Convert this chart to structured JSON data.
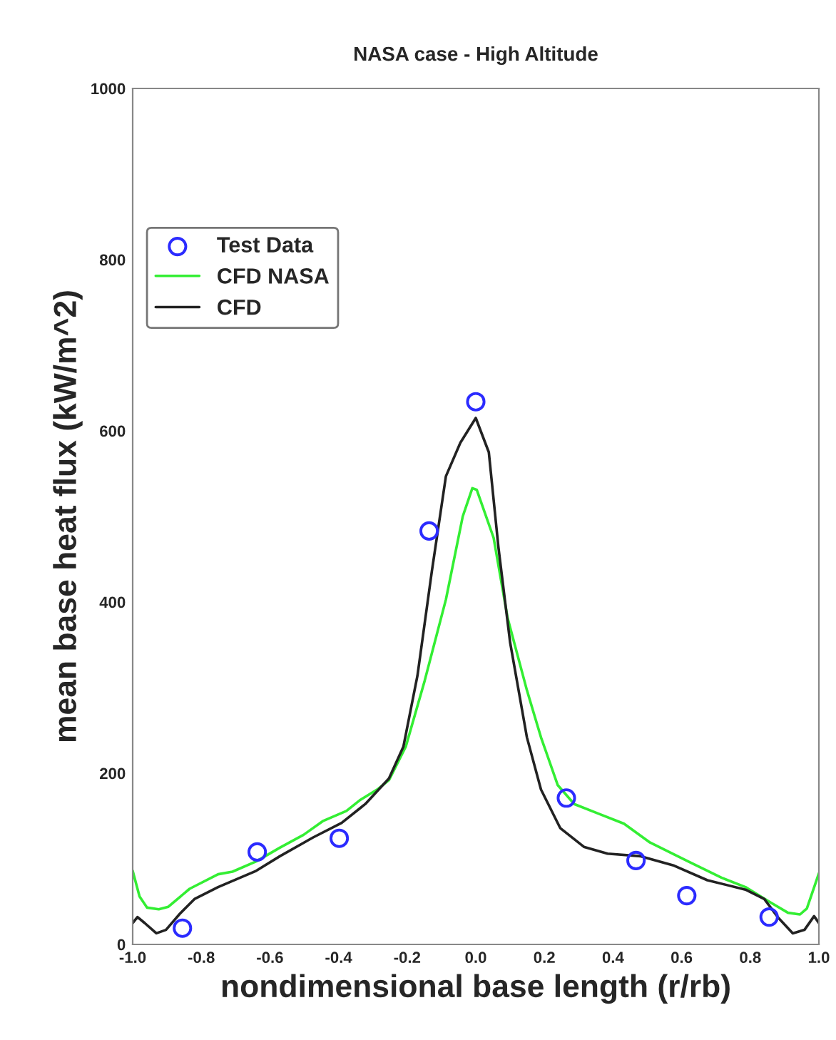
{
  "chart_data": {
    "type": "line",
    "title": "NASA case - High Altitude",
    "xlabel": "nondimensional base length (r/rb)",
    "ylabel": "mean base heat flux (kW/m^2)",
    "xlim": [
      -1.0,
      1.0
    ],
    "ylim": [
      0,
      1000
    ],
    "xticks": [
      {
        "value": -1.0,
        "label": "-1.0"
      },
      {
        "value": -0.8,
        "label": "-0.8"
      },
      {
        "value": -0.6,
        "label": "-0.6"
      },
      {
        "value": -0.4,
        "label": "-0.4"
      },
      {
        "value": -0.2,
        "label": "-0.2"
      },
      {
        "value": 0.0,
        "label": "0.0"
      },
      {
        "value": 0.2,
        "label": "0.2"
      },
      {
        "value": 0.4,
        "label": "0.4"
      },
      {
        "value": 0.6,
        "label": "0.6"
      },
      {
        "value": 0.8,
        "label": "0.8"
      },
      {
        "value": 1.0,
        "label": "1.0"
      }
    ],
    "yticks": [
      0,
      200,
      400,
      600,
      800,
      1000
    ],
    "grid": false,
    "legend": "top left",
    "series": [
      {
        "name": "Test Data",
        "type": "scatter",
        "marker": "circle",
        "color": "#2b2bff",
        "x": [
          -0.855,
          -0.637,
          -0.398,
          -0.136,
          0.0,
          0.264,
          0.467,
          0.615,
          0.855
        ],
        "values": [
          19,
          108,
          124,
          483,
          634,
          171,
          98,
          57,
          32
        ]
      },
      {
        "name": "CFD NASA",
        "marker": "none",
        "color": "#33ee33",
        "x": [
          -1.0,
          -0.98,
          -0.958,
          -0.924,
          -0.896,
          -0.834,
          -0.751,
          -0.709,
          -0.64,
          -0.571,
          -0.502,
          -0.446,
          -0.377,
          -0.336,
          -0.287,
          -0.253,
          -0.204,
          -0.149,
          -0.087,
          -0.038,
          -0.01,
          0.003,
          0.052,
          0.093,
          0.149,
          0.19,
          0.239,
          0.287,
          0.356,
          0.432,
          0.508,
          0.619,
          0.716,
          0.786,
          0.855,
          0.91,
          0.945,
          0.965,
          1.0
        ],
        "values": [
          86,
          56,
          43,
          41,
          44,
          65,
          82,
          85,
          97,
          113,
          128,
          144,
          156,
          169,
          181,
          192,
          231,
          308,
          403,
          500,
          533,
          531,
          475,
          381,
          297,
          242,
          186,
          164,
          153,
          141,
          119,
          97,
          78,
          67,
          50,
          37,
          35,
          42,
          83
        ]
      },
      {
        "name": "CFD",
        "marker": "none",
        "color": "#222222",
        "x": [
          -1.0,
          -0.986,
          -0.965,
          -0.931,
          -0.903,
          -0.862,
          -0.82,
          -0.751,
          -0.64,
          -0.571,
          -0.474,
          -0.391,
          -0.322,
          -0.253,
          -0.211,
          -0.17,
          -0.128,
          -0.087,
          -0.045,
          0.0,
          0.038,
          0.066,
          0.1,
          0.149,
          0.19,
          0.246,
          0.315,
          0.384,
          0.481,
          0.578,
          0.675,
          0.786,
          0.841,
          0.882,
          0.924,
          0.958,
          0.986,
          1.0
        ],
        "values": [
          25,
          32,
          25,
          13,
          17,
          36,
          53,
          67,
          86,
          103,
          125,
          142,
          164,
          194,
          231,
          314,
          436,
          547,
          586,
          615,
          575,
          464,
          353,
          242,
          181,
          136,
          114,
          106,
          103,
          92,
          75,
          64,
          53,
          31,
          13,
          17,
          33,
          25
        ]
      }
    ]
  }
}
